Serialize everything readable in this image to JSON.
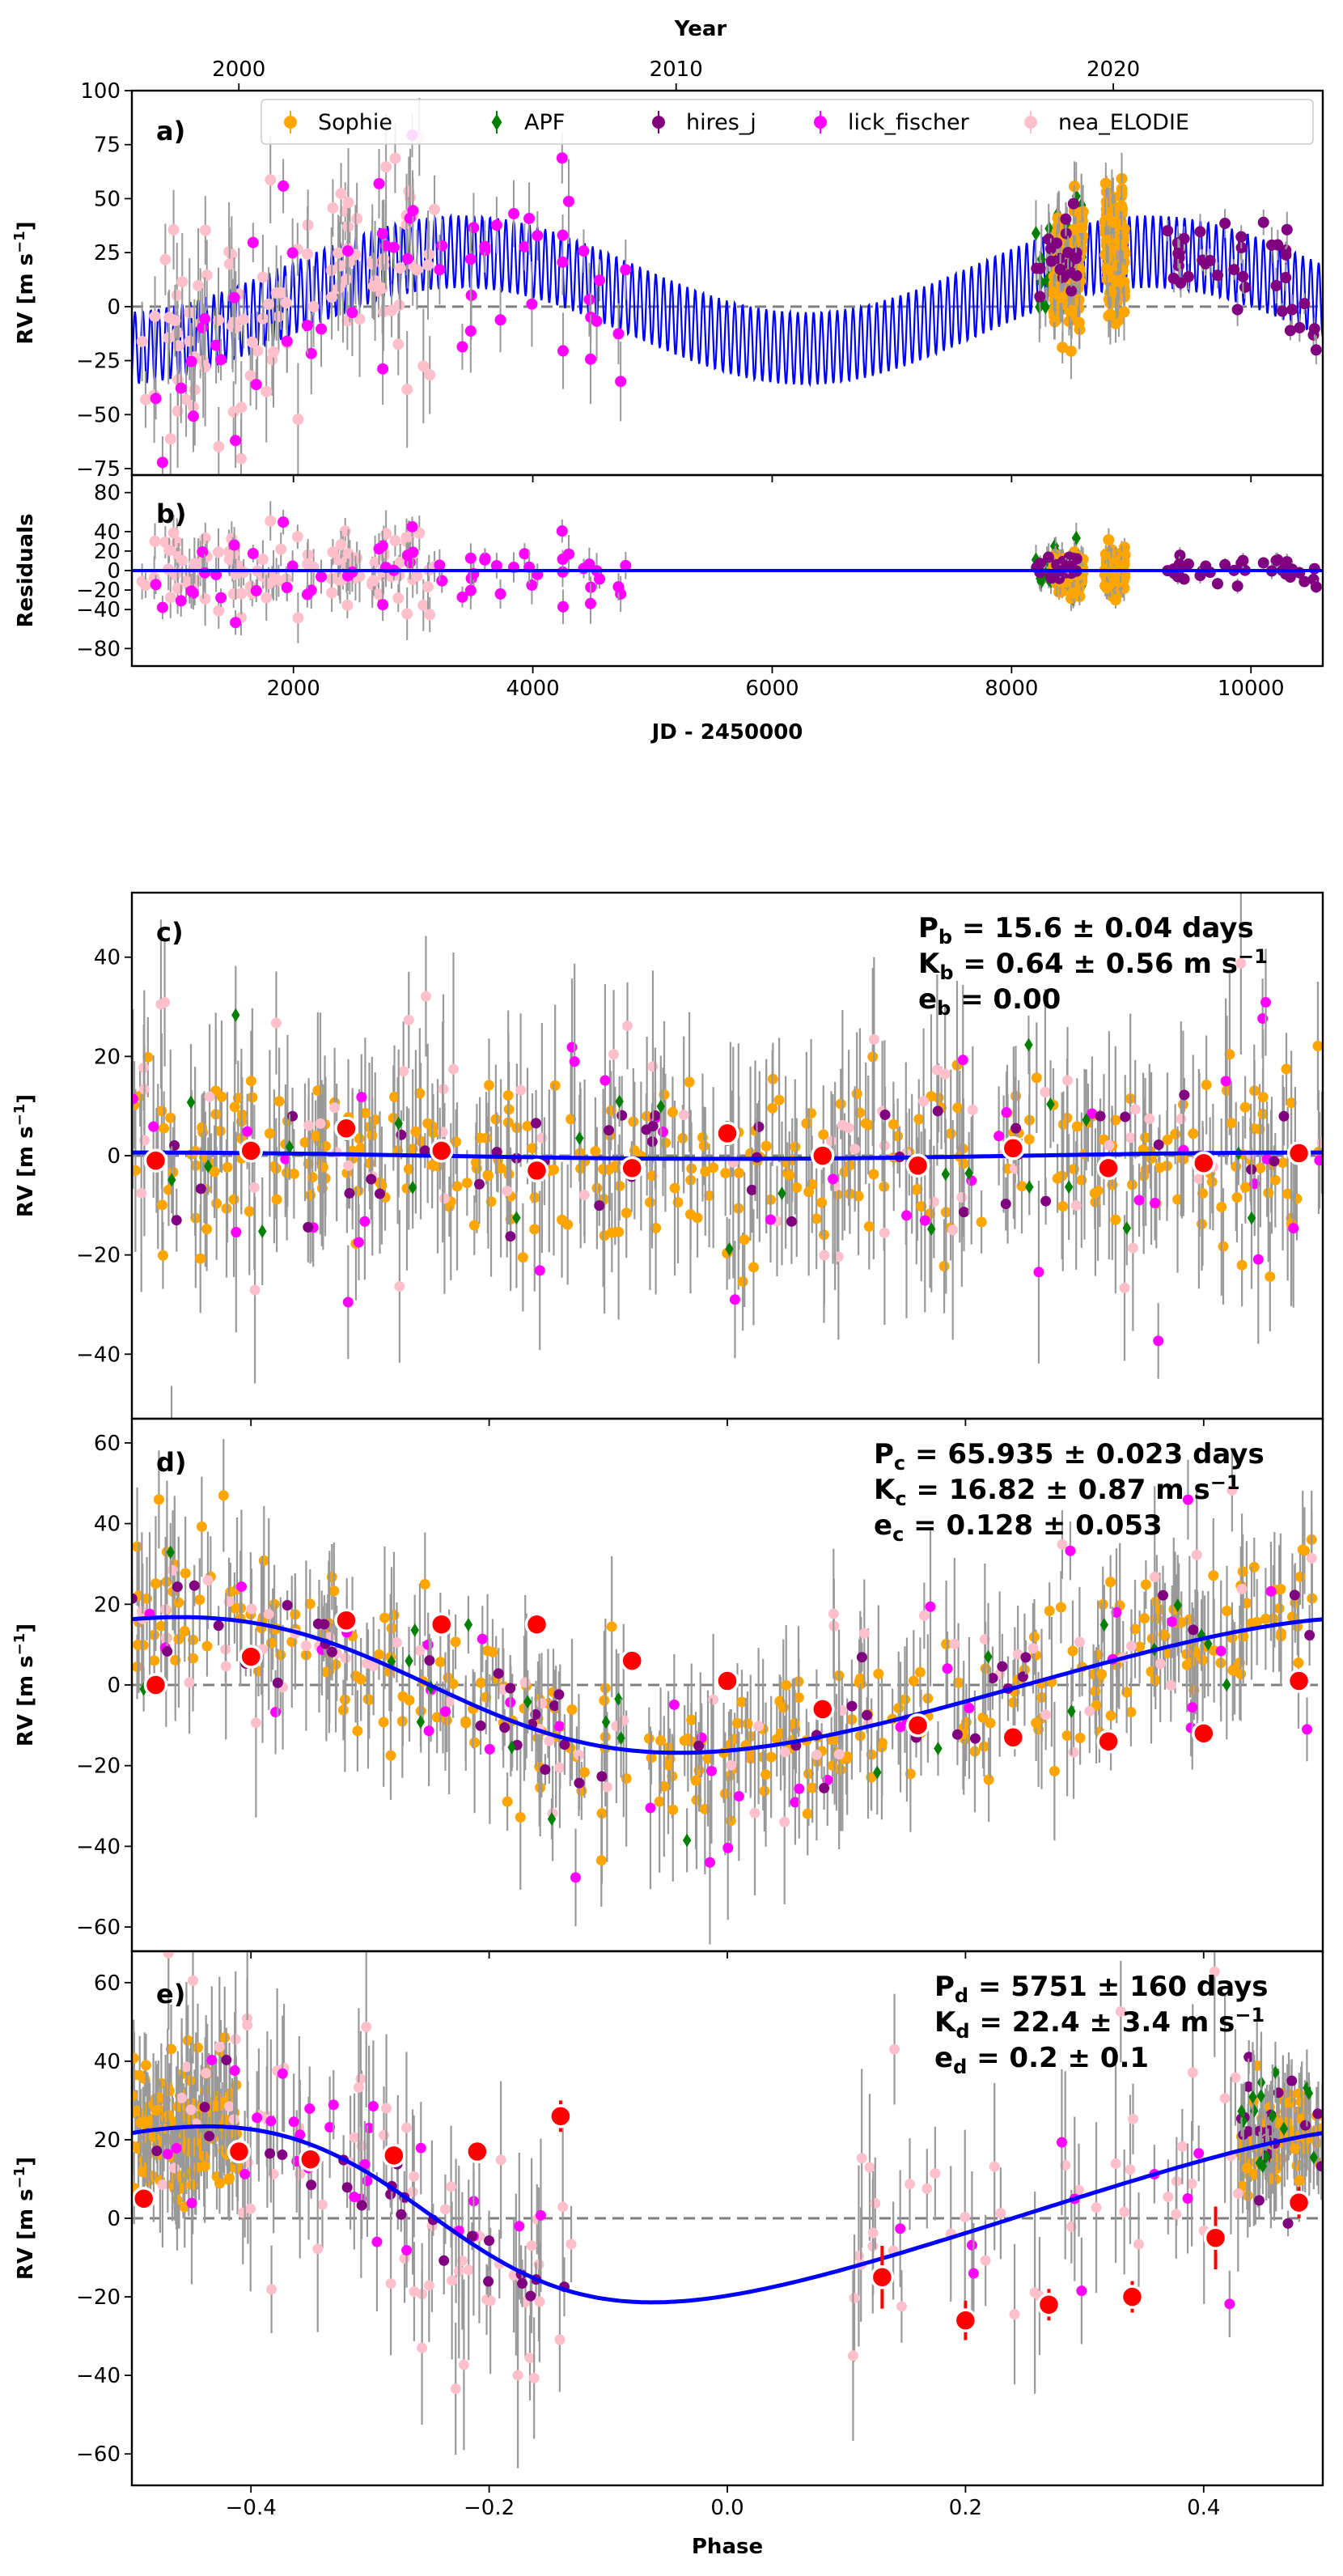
{
  "colors": {
    "Sophie": "#ffa500",
    "APF": "#008000",
    "hires_j": "#800080",
    "lick_fischer": "#ff00ff",
    "nea_ELODIE": "#ffc0cb",
    "model": "#0000ff",
    "binned": "#ff0000",
    "errorbar": "#999999",
    "zero_line": "#808080"
  },
  "chart_data": [
    {
      "id": "a",
      "tag": "a)",
      "type": "scatter",
      "title": "",
      "xlabel": "",
      "ylabel": "RV [m s",
      "ylabel_sup": "−1",
      "ylabel_end": "]",
      "xlim": [
        650,
        10600
      ],
      "ylim": [
        -78,
        100
      ],
      "xticks": [
        2000,
        4000,
        6000,
        8000,
        10000
      ],
      "yticks": [
        -75,
        -50,
        -25,
        0,
        25,
        50,
        75,
        100
      ],
      "ytick_labels": [
        "−75",
        "−50",
        "−25",
        "0",
        "25",
        "50",
        "75",
        "100"
      ],
      "top_axis": {
        "label": "Year",
        "ticks": [
          2000,
          2010,
          2020
        ],
        "tick_jd": [
          1544,
          5197,
          8850
        ]
      },
      "legend": [
        "Sophie",
        "APF",
        "hires_j",
        "lick_fischer",
        "nea_ELODIE"
      ],
      "model": {
        "description": "RV model curve (dense oscillation within long-period envelope)",
        "long_period_jd": 5751,
        "long_amplitude": 22.4,
        "long_phase_ref_jd": 3400,
        "long_offset": 3,
        "short_period_jd": 65.935,
        "short_amplitude": 16.82
      }
    },
    {
      "id": "b",
      "tag": "b)",
      "type": "scatter",
      "xlabel": "JD - 2450000",
      "ylabel": "Residuals",
      "xlim": [
        650,
        10600
      ],
      "ylim": [
        -98,
        98
      ],
      "xticks": [
        2000,
        4000,
        6000,
        8000,
        10000
      ],
      "yticks": [
        -80,
        -40,
        -20,
        0,
        20,
        40,
        80
      ],
      "ytick_labels": [
        "−80",
        "−40",
        "−20",
        "0",
        "20",
        "40",
        "80"
      ]
    },
    {
      "id": "c",
      "tag": "c)",
      "type": "scatter",
      "ylabel": "RV [m s",
      "ylabel_sup": "−1",
      "ylabel_end": "]",
      "xlim": [
        -0.5,
        0.5
      ],
      "ylim": [
        -53,
        53
      ],
      "yticks": [
        -40,
        -20,
        0,
        20,
        40
      ],
      "ytick_labels": [
        "−40",
        "−20",
        "0",
        "20",
        "40"
      ],
      "annotations": [
        {
          "main": "P",
          "sub": "b",
          "rest": " = 15.6 ± 0.04 days"
        },
        {
          "main": "K",
          "sub": "b",
          "rest": " = 0.64 ± 0.56 m s",
          "sup": "−1"
        },
        {
          "main": "e",
          "sub": "b",
          "rest": " = 0.00"
        }
      ],
      "model": {
        "amplitude": 0.64,
        "ecc": 0.0
      },
      "binned": {
        "phase": [
          -0.48,
          -0.4,
          -0.32,
          -0.24,
          -0.16,
          -0.08,
          0.0,
          0.08,
          0.16,
          0.24,
          0.32,
          0.4,
          0.48
        ],
        "rv": [
          -1,
          1,
          5.5,
          1,
          -3,
          -2.5,
          4.5,
          0,
          -2,
          1.5,
          -2.5,
          -1.5,
          0.5
        ],
        "err": [
          1.5,
          1.2,
          2.5,
          1.5,
          1.2,
          1.2,
          2.5,
          1.5,
          1.2,
          1.5,
          1.2,
          1.5,
          1.5
        ]
      }
    },
    {
      "id": "d",
      "tag": "d)",
      "type": "scatter",
      "ylabel": "RV [m s",
      "ylabel_sup": "−1",
      "ylabel_end": "]",
      "xlim": [
        -0.5,
        0.5
      ],
      "ylim": [
        -66,
        66
      ],
      "yticks": [
        -60,
        -40,
        -20,
        0,
        20,
        40,
        60
      ],
      "ytick_labels": [
        "−60",
        "−40",
        "−20",
        "0",
        "20",
        "40",
        "60"
      ],
      "annotations": [
        {
          "main": "P",
          "sub": "c",
          "rest": " = 65.935 ± 0.023 days"
        },
        {
          "main": "K",
          "sub": "c",
          "rest": " = 16.82 ± 0.87 m s",
          "sup": "−1"
        },
        {
          "main": "e",
          "sub": "c",
          "rest": " = 0.128 ± 0.053"
        }
      ],
      "model": {
        "amplitude": 16.82,
        "ecc": 0.128
      },
      "binned": {
        "phase": [
          -0.48,
          -0.4,
          -0.32,
          -0.24,
          -0.16,
          -0.08,
          0.0,
          0.08,
          0.16,
          0.24,
          0.32,
          0.4,
          0.48
        ],
        "rv": [
          0,
          7,
          16,
          15,
          15,
          6,
          1,
          -6,
          -10,
          -13,
          -14,
          -12,
          1
        ],
        "err": [
          2,
          2,
          2,
          2,
          2,
          2,
          2,
          2,
          2,
          2,
          2,
          2,
          2
        ]
      }
    },
    {
      "id": "e",
      "tag": "e)",
      "type": "scatter",
      "xlabel": "Phase",
      "ylabel": "RV [m s",
      "ylabel_sup": "−1",
      "ylabel_end": "]",
      "xlim": [
        -0.5,
        0.5
      ],
      "ylim": [
        -68,
        68
      ],
      "xticks": [
        -0.4,
        -0.2,
        0.0,
        0.2,
        0.4
      ],
      "xtick_labels": [
        "−0.4",
        "−0.2",
        "0.0",
        "0.2",
        "0.4"
      ],
      "yticks": [
        -60,
        -40,
        -20,
        0,
        20,
        40,
        60
      ],
      "ytick_labels": [
        "−60",
        "−40",
        "−20",
        "0",
        "20",
        "40",
        "60"
      ],
      "annotations": [
        {
          "main": "P",
          "sub": "d",
          "rest": " = 5751 ± 160 days"
        },
        {
          "main": "K",
          "sub": "d",
          "rest": " = 22.4 ± 3.4 m s",
          "sup": "−1"
        },
        {
          "main": "e",
          "sub": "d",
          "rest": " = 0.2 ± 0.1"
        }
      ],
      "model": {
        "amplitude": 22.4,
        "ecc": 0.2
      },
      "binned": {
        "phase": [
          -0.49,
          -0.41,
          -0.35,
          -0.28,
          -0.21,
          -0.14,
          0.13,
          0.2,
          0.27,
          0.34,
          0.41,
          0.48
        ],
        "rv": [
          5,
          17,
          15,
          16,
          17,
          26,
          -15,
          -26,
          -22,
          -20,
          -5,
          4
        ],
        "err": [
          2,
          3,
          3,
          3,
          3,
          4,
          8,
          5,
          4,
          4,
          8,
          4
        ]
      }
    }
  ]
}
